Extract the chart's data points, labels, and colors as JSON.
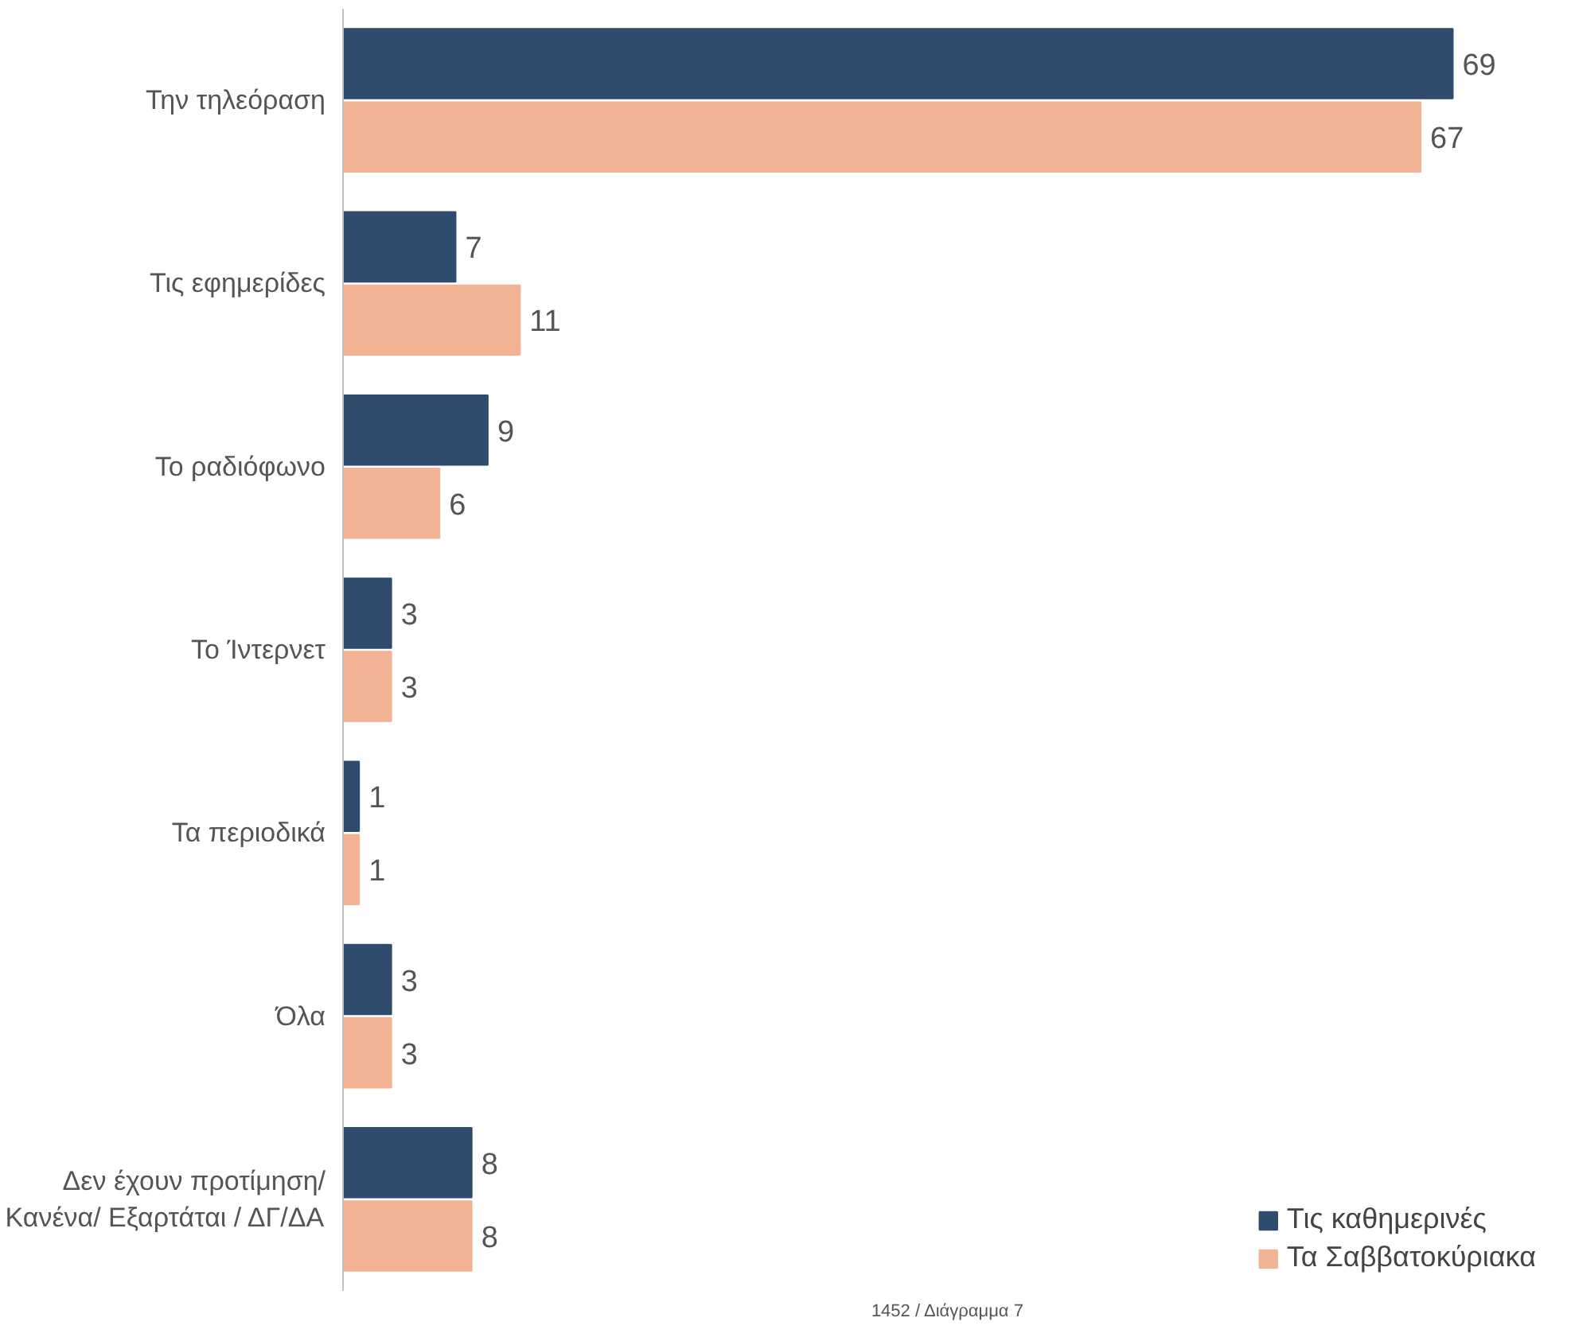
{
  "chart_data": {
    "type": "bar",
    "orientation": "horizontal",
    "categories": [
      "Την τηλεόραση",
      "Τις εφημερίδες",
      "Το ραδιόφωνο",
      "Το Ίντερνετ",
      "Τα περιοδικά",
      "Όλα",
      "Δεν έχουν προτίμηση/\nΚανένα/ Εξαρτάται / ΔΓ/ΔΑ"
    ],
    "series": [
      {
        "name": "Τις καθημερινές",
        "color": "#2f4b6e",
        "values": [
          69,
          7,
          9,
          3,
          1,
          3,
          8
        ]
      },
      {
        "name": "Τα Σαββατοκύριακα",
        "color": "#f2b395",
        "values": [
          67,
          11,
          6,
          3,
          1,
          3,
          8
        ]
      }
    ],
    "data_labels": true,
    "legend": "bottom right",
    "grid": false,
    "annotations": [
      "1452 / Διάγραμμα 7"
    ]
  }
}
